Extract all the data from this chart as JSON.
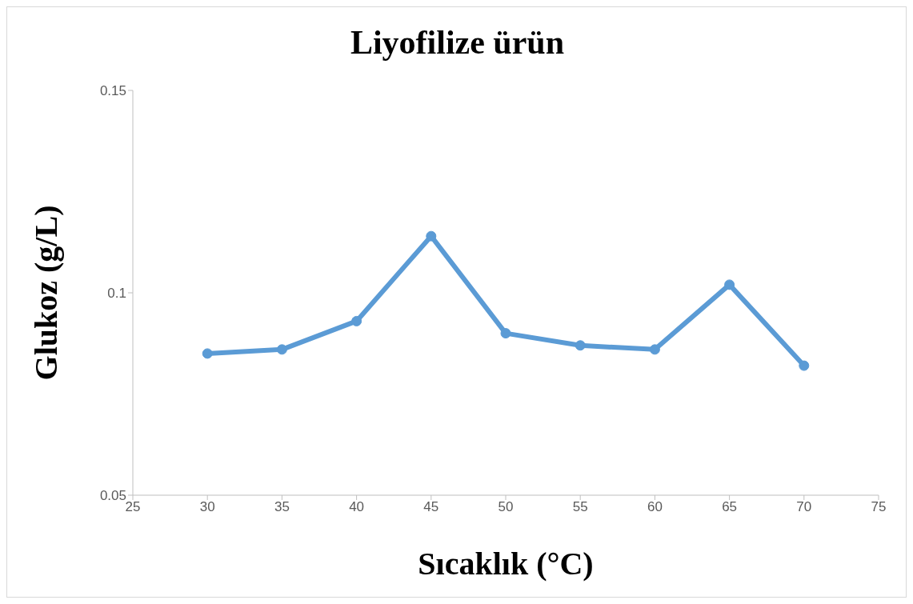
{
  "chart_data": {
    "type": "line",
    "title": "Liyofilize ürün",
    "xlabel": "Sıcaklık (°C)",
    "ylabel": "Glukoz (g/L)",
    "x": [
      30,
      35,
      40,
      45,
      50,
      55,
      60,
      65,
      70
    ],
    "series": [
      {
        "color": "#5b9bd5",
        "values": [
          0.085,
          0.086,
          0.093,
          0.114,
          0.09,
          0.087,
          0.086,
          0.102,
          0.082
        ]
      }
    ],
    "xlim": [
      25,
      75
    ],
    "xticks": [
      25,
      30,
      35,
      40,
      45,
      50,
      55,
      60,
      65,
      70,
      75
    ],
    "ylim": [
      0.05,
      0.15
    ],
    "yticks": [
      0.05,
      0.1,
      0.15
    ],
    "grid": false,
    "legend": false,
    "marker": "circle",
    "line_style": "solid"
  }
}
